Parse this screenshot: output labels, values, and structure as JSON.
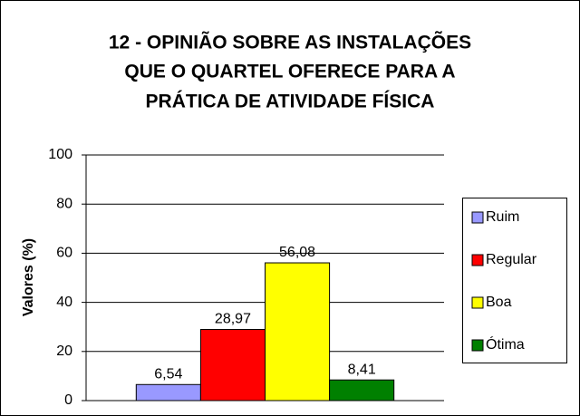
{
  "chart_data": {
    "type": "bar",
    "title": [
      "12 - OPINIÃO SOBRE AS INSTALAÇÕES",
      "QUE O QUARTEL OFERECE PARA A",
      "PRÁTICA DE ATIVIDADE FÍSICA"
    ],
    "y_label": "Valores (%)",
    "series": [
      {
        "name": "Ruim",
        "color": "#9999ff",
        "values": [
          6.54
        ],
        "value_labels": [
          "6,54"
        ]
      },
      {
        "name": "Regular",
        "color": "#ff0000",
        "values": [
          28.97
        ],
        "value_labels": [
          "28,97"
        ]
      },
      {
        "name": "Boa",
        "color": "#ffff00",
        "values": [
          56.08
        ],
        "value_labels": [
          "56,08"
        ]
      },
      {
        "name": "Ótima",
        "color": "#008000",
        "values": [
          8.41
        ],
        "value_labels": [
          "8,41"
        ]
      }
    ],
    "ylim": [
      0,
      100
    ],
    "yticks": [
      0,
      20,
      40,
      60,
      80,
      100
    ],
    "grid": true,
    "legend": "right"
  }
}
